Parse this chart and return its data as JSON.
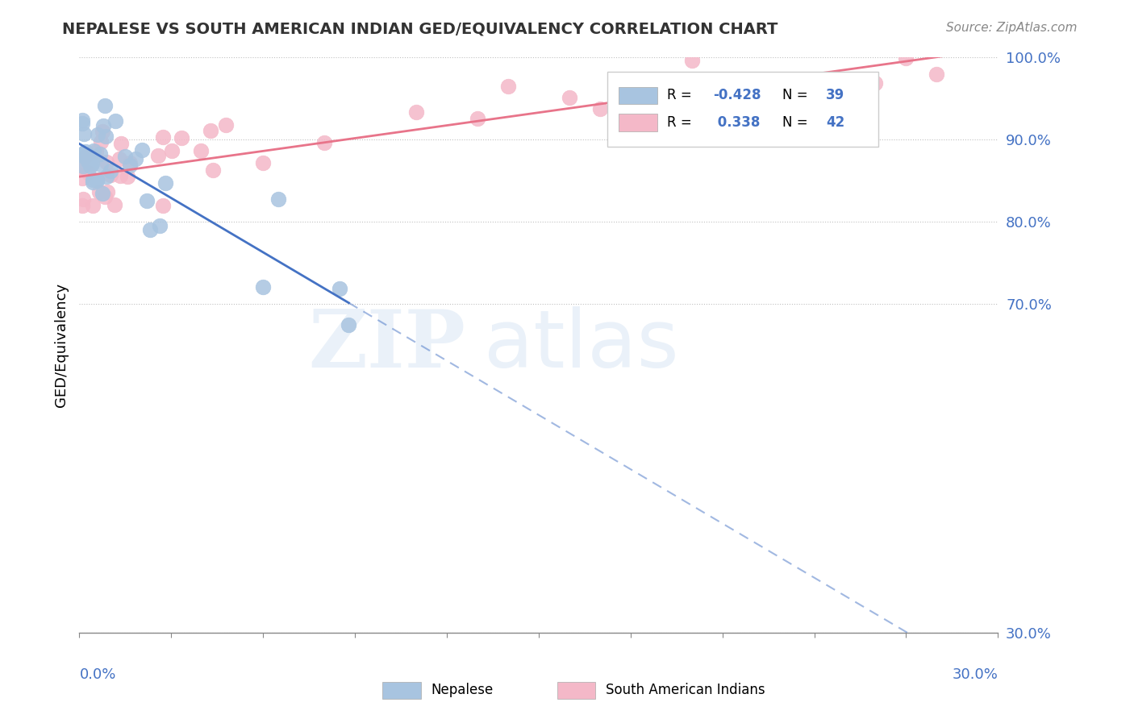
{
  "title": "NEPALESE VS SOUTH AMERICAN INDIAN GED/EQUIVALENCY CORRELATION CHART",
  "source": "Source: ZipAtlas.com",
  "ylabel": "GED/Equivalency",
  "ytick_vals": [
    0.3,
    0.7,
    0.8,
    0.9,
    1.0
  ],
  "xmin": 0.0,
  "xmax": 0.3,
  "ymin": 0.3,
  "ymax": 1.0,
  "legend_R_blue": "-0.428",
  "legend_N_blue": "39",
  "legend_R_pink": "0.338",
  "legend_N_pink": "42",
  "blue_color": "#a8c4e0",
  "blue_line_color": "#4472c4",
  "pink_color": "#f4b8c8",
  "pink_line_color": "#e8748a",
  "axis_label_color": "#4472c4"
}
